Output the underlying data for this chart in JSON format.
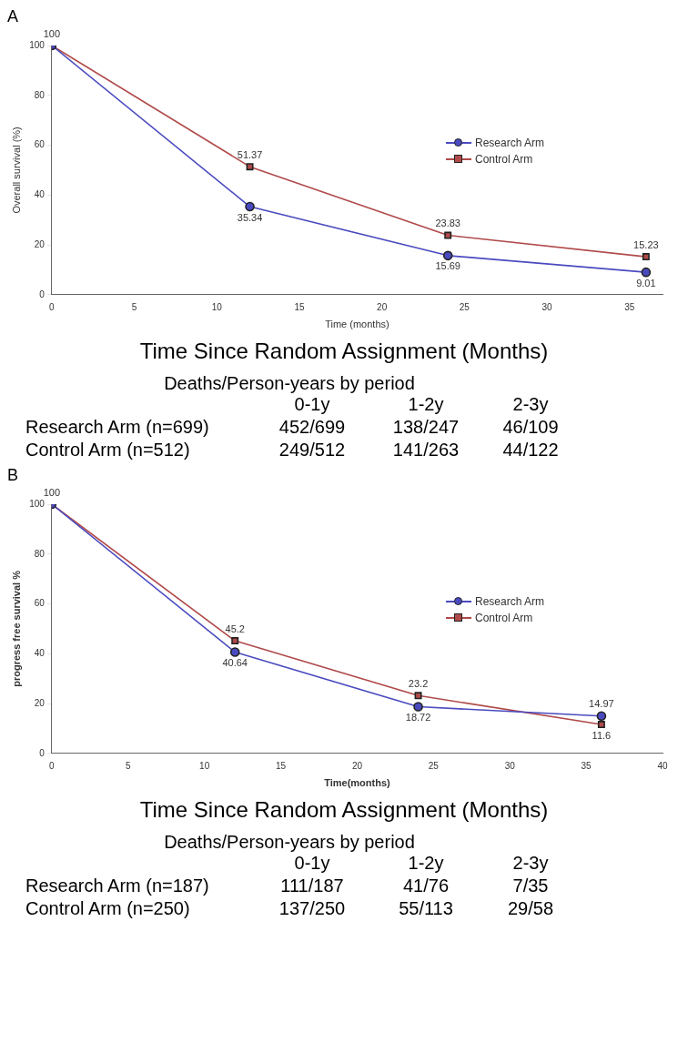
{
  "chart_data": [
    {
      "type": "line",
      "title": "A",
      "xlabel": "Time (months)",
      "ylabel": "Overall survival (%)",
      "x": [
        0,
        12,
        24,
        36
      ],
      "xlim": [
        0,
        37
      ],
      "xticks": [
        0,
        5,
        10,
        15,
        20,
        25,
        30,
        35
      ],
      "ylim": [
        0,
        100
      ],
      "yticks": [
        0,
        20,
        40,
        60,
        80,
        100
      ],
      "grid": false,
      "legend": "right",
      "series": [
        {
          "name": "Research Arm",
          "color": "#4a4ac0",
          "marker": "circle",
          "values": [
            100,
            35.34,
            15.69,
            9.01
          ],
          "value_labels": [
            null,
            "35.34",
            "15.69",
            "9.01"
          ]
        },
        {
          "name": "Control Arm",
          "color": "#b04a4a",
          "marker": "square",
          "values": [
            100,
            51.37,
            23.83,
            15.23
          ],
          "value_labels": [
            "100",
            "51.37",
            "23.83",
            "15.23"
          ]
        }
      ],
      "annotations": [
        "Time Since Random Assignment (Months)",
        "Deaths/Person-years by period",
        "0-1y",
        "1-2y",
        "2-3y",
        "Research Arm (n=699)",
        "452/699",
        "138/247",
        "46/109",
        "Control Arm (n=512)",
        "249/512",
        "141/263",
        "44/122"
      ]
    },
    {
      "type": "line",
      "title": "B",
      "xlabel": "Time(months)",
      "ylabel": "progress free survival %",
      "x": [
        0,
        12,
        24,
        36
      ],
      "xlim": [
        0,
        40
      ],
      "xticks": [
        0,
        5,
        10,
        15,
        20,
        25,
        30,
        35,
        40
      ],
      "ylim": [
        0,
        100
      ],
      "yticks": [
        0,
        20,
        40,
        60,
        80,
        100
      ],
      "grid": false,
      "legend": "right",
      "series": [
        {
          "name": "Research Arm",
          "color": "#4a4ac0",
          "marker": "circle",
          "values": [
            100,
            40.64,
            18.72,
            14.97
          ],
          "value_labels": [
            null,
            "40.64",
            "18.72",
            "14.97"
          ]
        },
        {
          "name": "Control Arm",
          "color": "#b04a4a",
          "marker": "square",
          "values": [
            100,
            45.2,
            23.2,
            11.6
          ],
          "value_labels": [
            "100",
            "45.2",
            "23.2",
            "11.6"
          ]
        }
      ],
      "annotations": [
        "Time Since Random Assignment (Months)",
        "Deaths/Person-years by period",
        "0-1y",
        "1-2y",
        "2-3y",
        "Research Arm (n=187)",
        "111/187",
        "41/76",
        "7/35",
        "Control Arm (n=250)",
        "137/250",
        "55/113",
        "29/58"
      ]
    }
  ]
}
